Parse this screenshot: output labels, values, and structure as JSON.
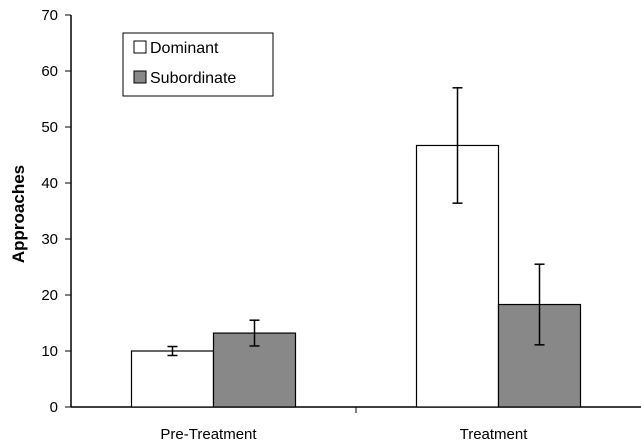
{
  "chart_data": {
    "type": "bar",
    "categories": [
      "Pre-Treatment",
      "Treatment"
    ],
    "series": [
      {
        "name": "Dominant",
        "values": [
          10,
          46.7
        ],
        "errors": [
          0.8,
          10.3
        ],
        "color": "#ffffff"
      },
      {
        "name": "Subordinate",
        "values": [
          13.2,
          18.3
        ],
        "errors": [
          2.3,
          7.2
        ],
        "color": "#888888"
      }
    ],
    "ylabel": "Approaches",
    "xlabel": "",
    "ylim": [
      0,
      70
    ],
    "yticks": [
      0,
      10,
      20,
      30,
      40,
      50,
      60,
      70
    ],
    "legend_position": "top-left",
    "grid": false
  }
}
